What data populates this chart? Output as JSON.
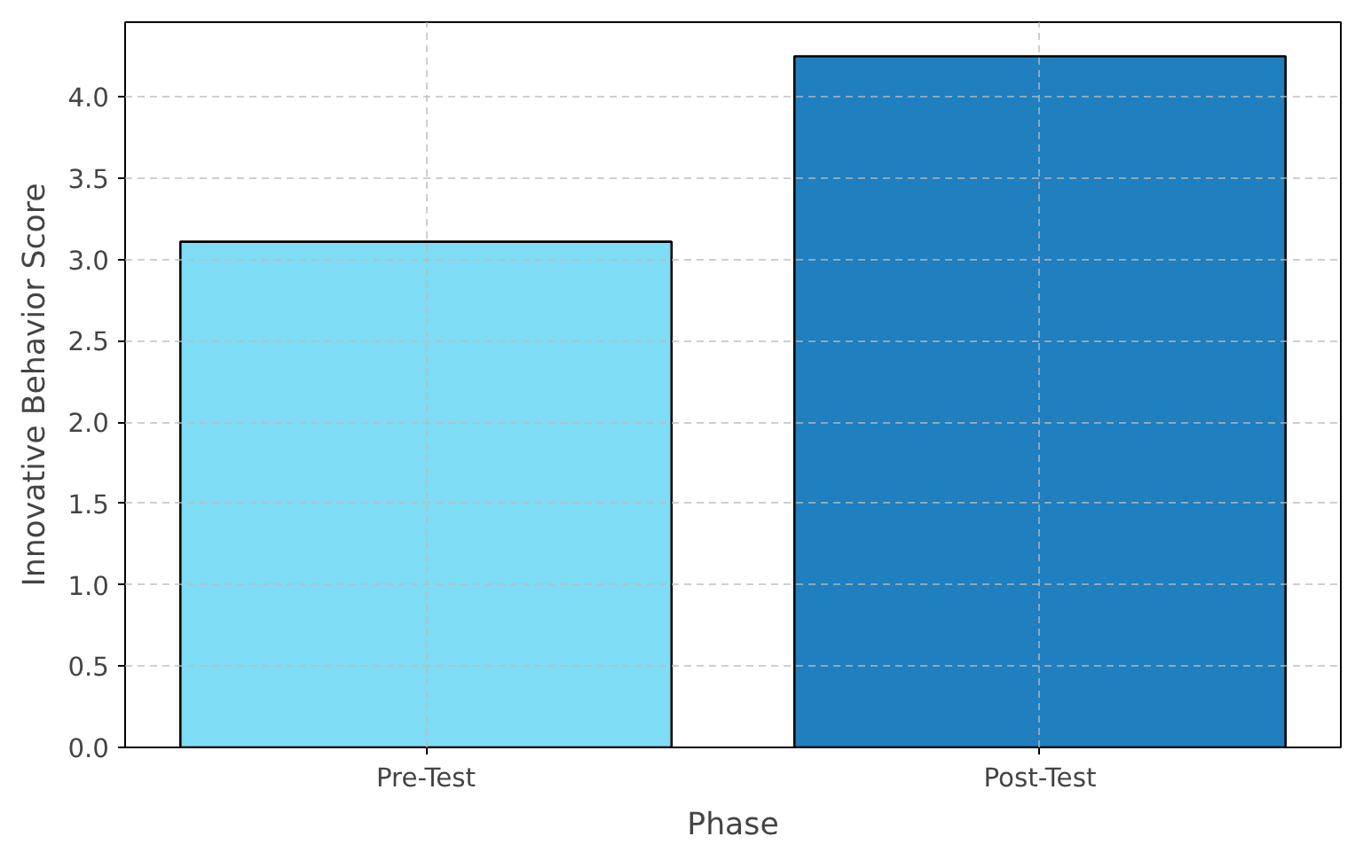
{
  "chart_data": {
    "type": "bar",
    "xlabel": "Phase",
    "ylabel": "Innovative Behavior Score",
    "categories": [
      "Pre-Test",
      "Post-Test"
    ],
    "values": [
      3.11,
      4.25
    ],
    "colors": [
      "#7fdcf5",
      "#1f7fbf"
    ],
    "ylim": [
      0,
      4.46
    ],
    "yticks": [
      {
        "value": 0,
        "label": "0.0"
      },
      0.5,
      {
        "value": 1,
        "label": "1.0"
      },
      1.5,
      {
        "value": 2,
        "label": "2.0"
      },
      2.5,
      {
        "value": 3,
        "label": "3.0"
      },
      3.5,
      {
        "value": 4,
        "label": "4.0"
      }
    ],
    "grid": true
  }
}
